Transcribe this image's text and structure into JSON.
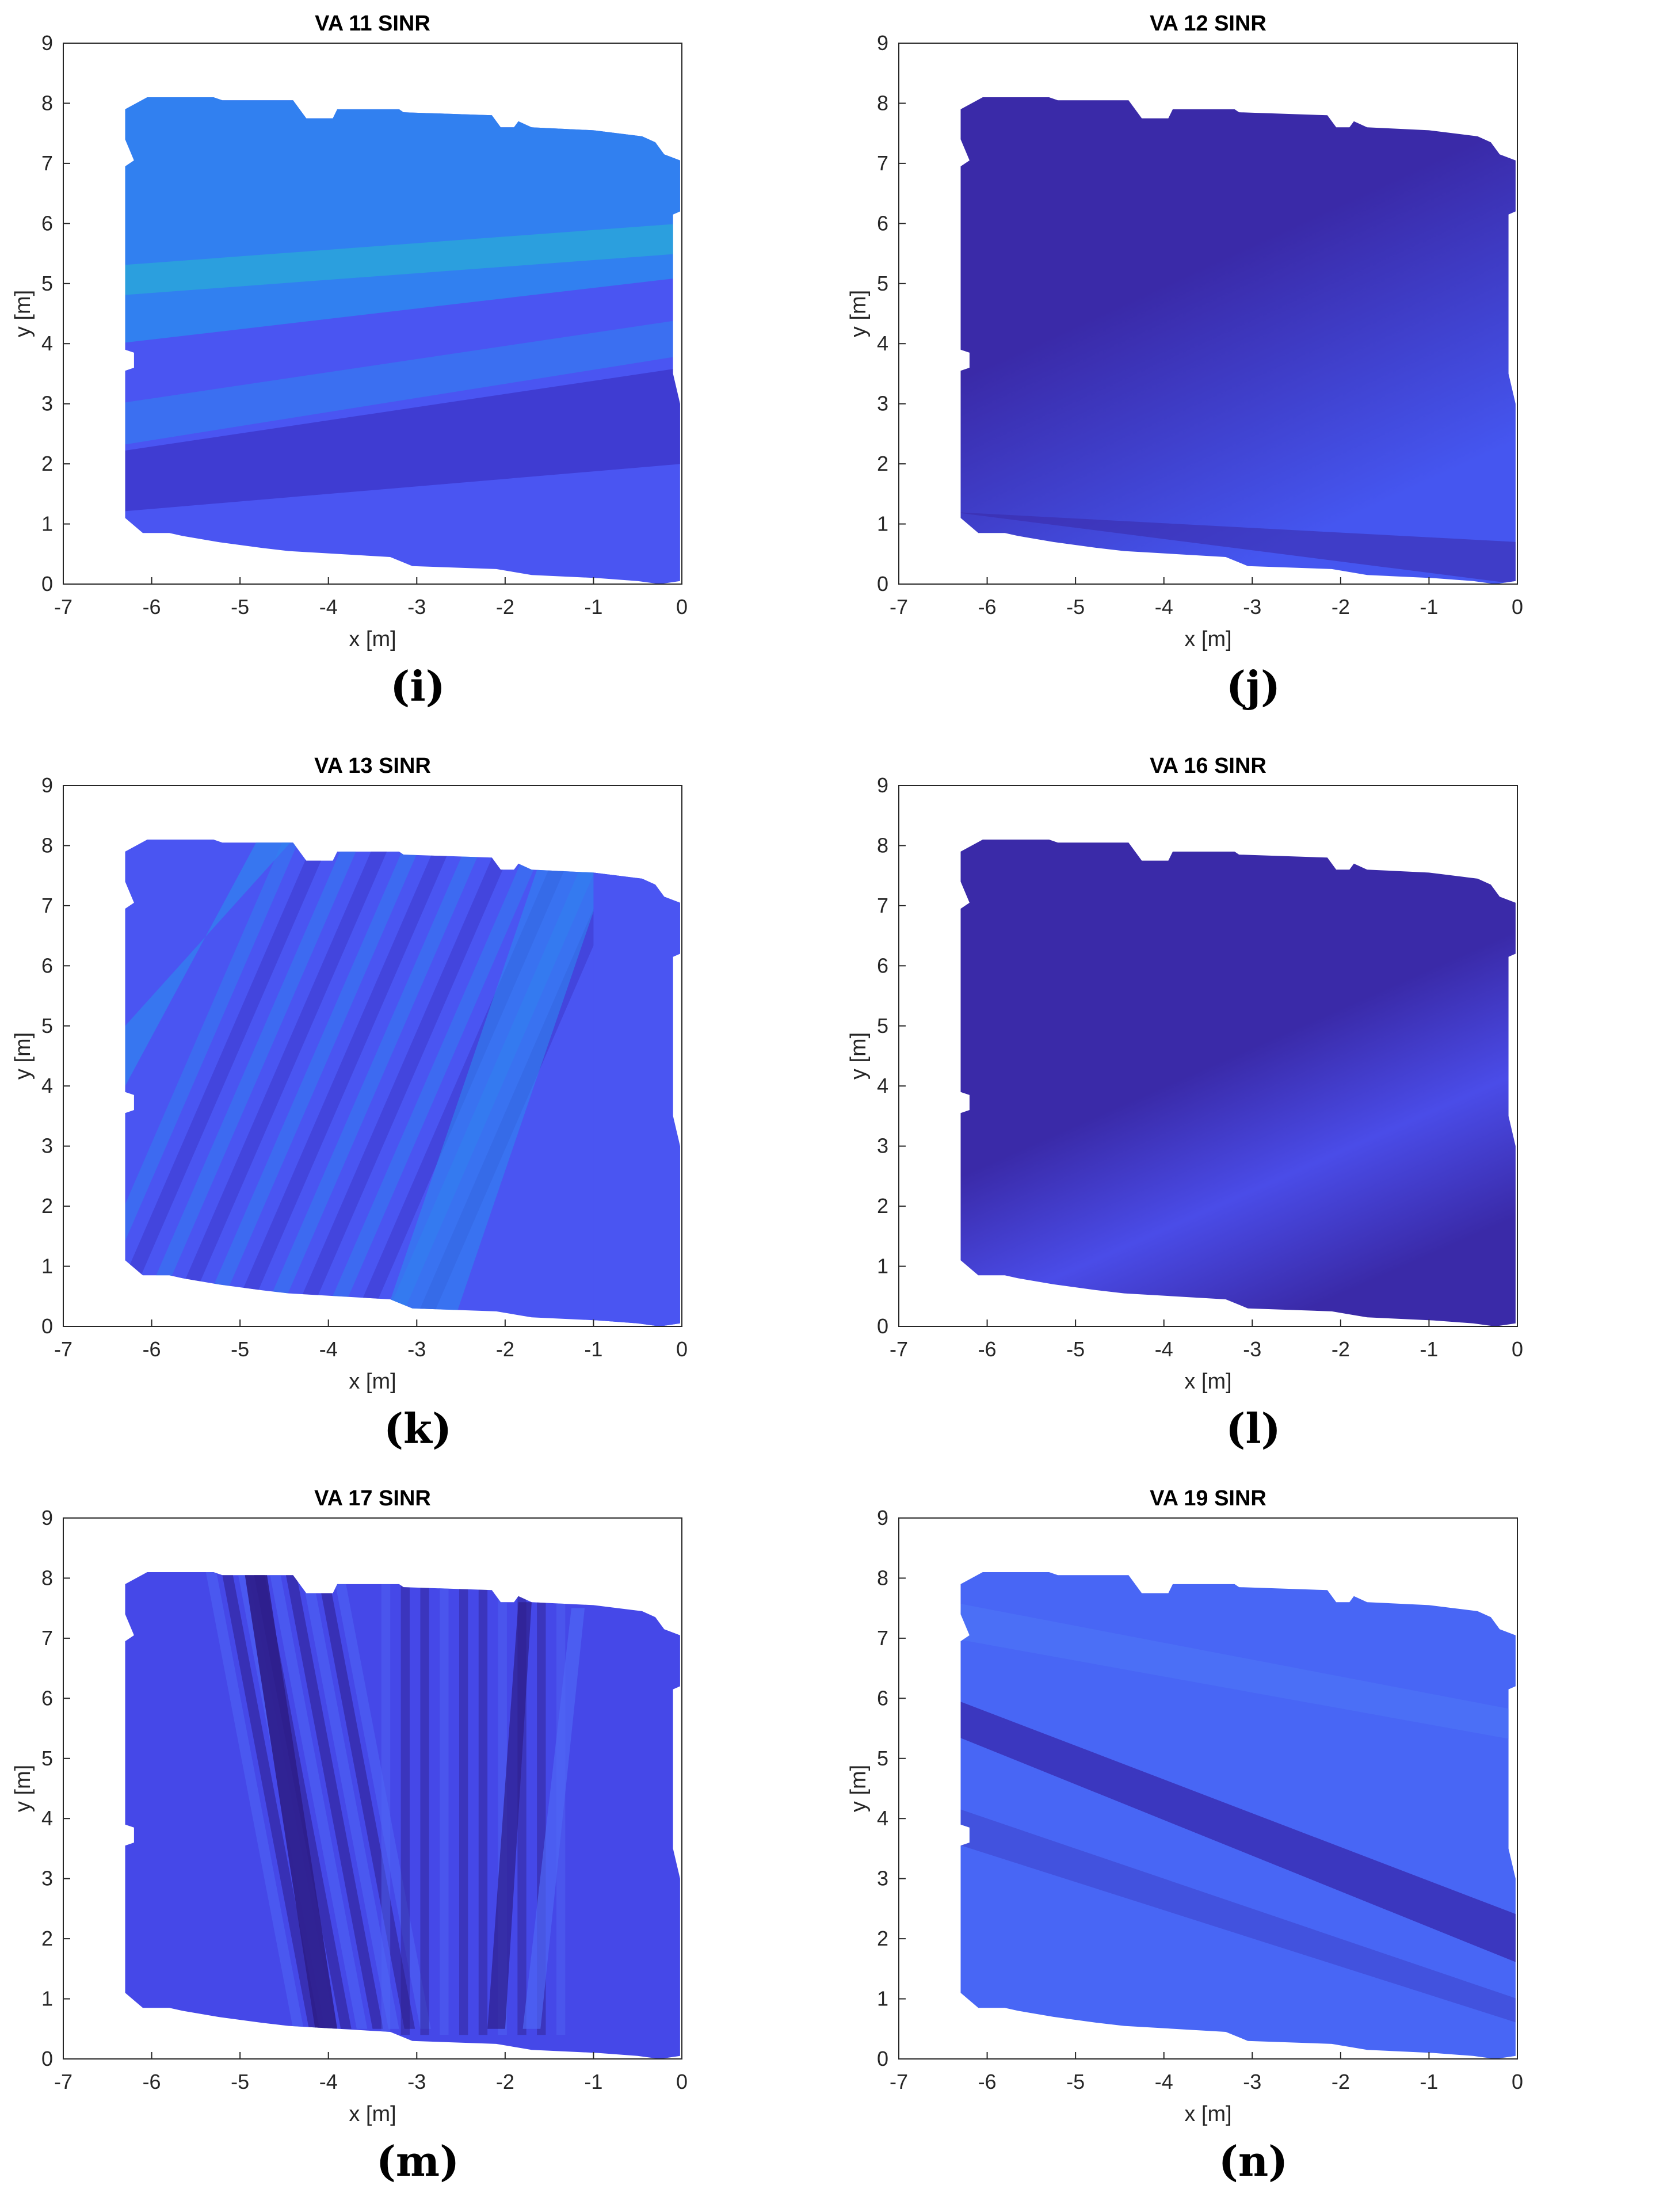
{
  "figure": {
    "panels": [
      {
        "id": "i",
        "title": "VA 11 SINR",
        "caption": "(i)",
        "pattern": "horizontal_bands"
      },
      {
        "id": "j",
        "title": "VA 12 SINR",
        "caption": "(j)",
        "pattern": "diagonal_smooth"
      },
      {
        "id": "k",
        "title": "VA 13 SINR",
        "caption": "(k)",
        "pattern": "diagonal_stripes"
      },
      {
        "id": "l",
        "title": "VA 16 SINR",
        "caption": "(l)",
        "pattern": "diagonal_dark"
      },
      {
        "id": "m",
        "title": "VA 17 SINR",
        "caption": "(m)",
        "pattern": "vertical_stripes"
      },
      {
        "id": "n",
        "title": "VA 19 SINR",
        "caption": "(n)",
        "pattern": "diagonal_lines"
      }
    ]
  },
  "chart_data": [
    {
      "type": "heatmap",
      "title": "VA 11 SINR",
      "xlabel": "x [m]",
      "ylabel": "y [m]",
      "xlim": [
        -7,
        0
      ],
      "ylim": [
        0,
        9
      ],
      "xticks": [
        -7,
        -6,
        -5,
        -4,
        -3,
        -2,
        -1,
        0
      ],
      "yticks": [
        0,
        1,
        2,
        3,
        4,
        5,
        6,
        7,
        8,
        9
      ],
      "colors": [
        "#3b32c4",
        "#4a55f2",
        "#2f85f0",
        "#2aa6d9"
      ]
    },
    {
      "type": "heatmap",
      "title": "VA 12 SINR",
      "xlabel": "x [m]",
      "ylabel": "y [m]",
      "xlim": [
        -7,
        0
      ],
      "ylim": [
        0,
        9
      ],
      "xticks": [
        -7,
        -6,
        -5,
        -4,
        -3,
        -2,
        -1,
        0
      ],
      "yticks": [
        0,
        1,
        2,
        3,
        4,
        5,
        6,
        7,
        8,
        9
      ],
      "colors": [
        "#3a2aa8",
        "#4556f0"
      ]
    },
    {
      "type": "heatmap",
      "title": "VA 13 SINR",
      "xlabel": "x [m]",
      "ylabel": "y [m]",
      "xlim": [
        -7,
        0
      ],
      "ylim": [
        0,
        9
      ],
      "xticks": [
        -7,
        -6,
        -5,
        -4,
        -3,
        -2,
        -1,
        0
      ],
      "yticks": [
        0,
        1,
        2,
        3,
        4,
        5,
        6,
        7,
        8,
        9
      ],
      "colors": [
        "#3b32c4",
        "#4a55f2",
        "#2f85f0"
      ]
    },
    {
      "type": "heatmap",
      "title": "VA 16 SINR",
      "xlabel": "x [m]",
      "ylabel": "y [m]",
      "xlim": [
        -7,
        0
      ],
      "ylim": [
        0,
        9
      ],
      "xticks": [
        -7,
        -6,
        -5,
        -4,
        -3,
        -2,
        -1,
        0
      ],
      "yticks": [
        0,
        1,
        2,
        3,
        4,
        5,
        6,
        7,
        8,
        9
      ],
      "colors": [
        "#3a2aa8",
        "#4a4ce8"
      ]
    },
    {
      "type": "heatmap",
      "title": "VA 17 SINR",
      "xlabel": "x [m]",
      "ylabel": "y [m]",
      "xlim": [
        -7,
        0
      ],
      "ylim": [
        0,
        9
      ],
      "xticks": [
        -7,
        -6,
        -5,
        -4,
        -3,
        -2,
        -1,
        0
      ],
      "yticks": [
        0,
        1,
        2,
        3,
        4,
        5,
        6,
        7,
        8,
        9
      ],
      "colors": [
        "#2e1e8a",
        "#4548e8",
        "#4f66f5"
      ]
    },
    {
      "type": "heatmap",
      "title": "VA 19 SINR",
      "xlabel": "x [m]",
      "ylabel": "y [m]",
      "xlim": [
        -7,
        0
      ],
      "ylim": [
        0,
        9
      ],
      "xticks": [
        -7,
        -6,
        -5,
        -4,
        -3,
        -2,
        -1,
        0
      ],
      "yticks": [
        0,
        1,
        2,
        3,
        4,
        5,
        6,
        7,
        8,
        9
      ],
      "colors": [
        "#3a2fb5",
        "#4866f5"
      ]
    }
  ]
}
